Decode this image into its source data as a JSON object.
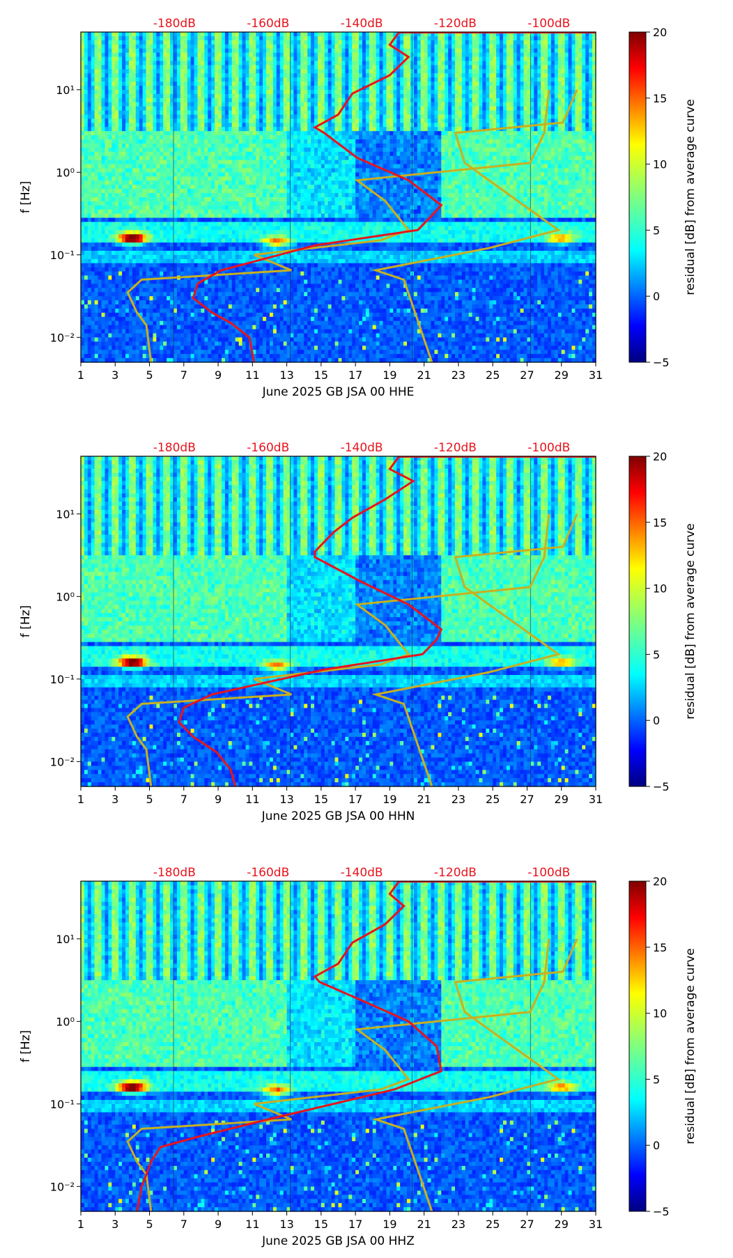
{
  "chart_data": {
    "type": "heatmap",
    "panels": [
      {
        "xlabel": "June 2025 GB JSA 00 HHE",
        "ylabel": "f [Hz]",
        "x_ticks": [
          "1",
          "3",
          "5",
          "7",
          "9",
          "11",
          "13",
          "15",
          "17",
          "19",
          "21",
          "23",
          "25",
          "27",
          "29",
          "31"
        ],
        "xlim": [
          1,
          31
        ],
        "y_ticks": [
          "10⁻²",
          "10⁻¹",
          "10⁰",
          "10¹"
        ],
        "ylim_hz": [
          0.005,
          50
        ],
        "top_db_labels": [
          "-180dB",
          "-160dB",
          "-140dB",
          "-120dB",
          "-100dB"
        ],
        "colorbar": {
          "label": "residual [dB] from average curve",
          "ticks": [
            "−5",
            "0",
            "5",
            "10",
            "15",
            "20"
          ],
          "range": [
            -5,
            20
          ],
          "colormap": "jet"
        }
      },
      {
        "xlabel": "June 2025 GB JSA 00 HHN",
        "ylabel": "f [Hz]",
        "x_ticks": [
          "1",
          "3",
          "5",
          "7",
          "9",
          "11",
          "13",
          "15",
          "17",
          "19",
          "21",
          "23",
          "25",
          "27",
          "29",
          "31"
        ],
        "xlim": [
          1,
          31
        ],
        "y_ticks": [
          "10⁻²",
          "10⁻¹",
          "10⁰",
          "10¹"
        ],
        "ylim_hz": [
          0.005,
          50
        ],
        "top_db_labels": [
          "-180dB",
          "-160dB",
          "-140dB",
          "-120dB",
          "-100dB"
        ],
        "colorbar": {
          "label": "residual [dB] from average curve",
          "ticks": [
            "−5",
            "0",
            "5",
            "10",
            "15",
            "20"
          ],
          "range": [
            -5,
            20
          ],
          "colormap": "jet"
        }
      },
      {
        "xlabel": "June 2025 GB JSA 00 HHZ",
        "ylabel": "f [Hz]",
        "x_ticks": [
          "1",
          "3",
          "5",
          "7",
          "9",
          "11",
          "13",
          "15",
          "17",
          "19",
          "21",
          "23",
          "25",
          "27",
          "29",
          "31"
        ],
        "xlim": [
          1,
          31
        ],
        "y_ticks": [
          "10⁻²",
          "10⁻¹",
          "10⁰",
          "10¹"
        ],
        "ylim_hz": [
          0.005,
          50
        ],
        "top_db_labels": [
          "-180dB",
          "-160dB",
          "-140dB",
          "-120dB",
          "-100dB"
        ],
        "colorbar": {
          "label": "residual [dB] from average curve",
          "ticks": [
            "−5",
            "0",
            "5",
            "10",
            "15",
            "20"
          ],
          "range": [
            -5,
            20
          ],
          "colormap": "jet"
        }
      }
    ],
    "noise_model_curves": {
      "color": "#c8b020",
      "low_model": [
        [
          -100,
          10
        ],
        [
          -101,
          3
        ],
        [
          -104,
          1.3
        ],
        [
          -141,
          0.8
        ],
        [
          -135,
          0.45
        ],
        [
          -130,
          0.2
        ],
        [
          -136,
          0.15
        ],
        [
          -163,
          0.1
        ],
        [
          -161,
          0.09
        ],
        [
          -155,
          0.065
        ],
        [
          -187,
          0.05
        ],
        [
          -190,
          0.035
        ],
        [
          -188,
          0.02
        ],
        [
          -186,
          0.014
        ],
        [
          -185,
          0.005
        ]
      ],
      "high_model": [
        [
          -94,
          10
        ],
        [
          -97,
          4
        ],
        [
          -120,
          3
        ],
        [
          -118,
          1.3
        ],
        [
          -98,
          0.2
        ],
        [
          -113,
          0.12
        ],
        [
          -137,
          0.065
        ],
        [
          -131,
          0.05
        ],
        [
          -125,
          0.005
        ]
      ]
    },
    "median_psd_curve_color": "#e8141c"
  }
}
